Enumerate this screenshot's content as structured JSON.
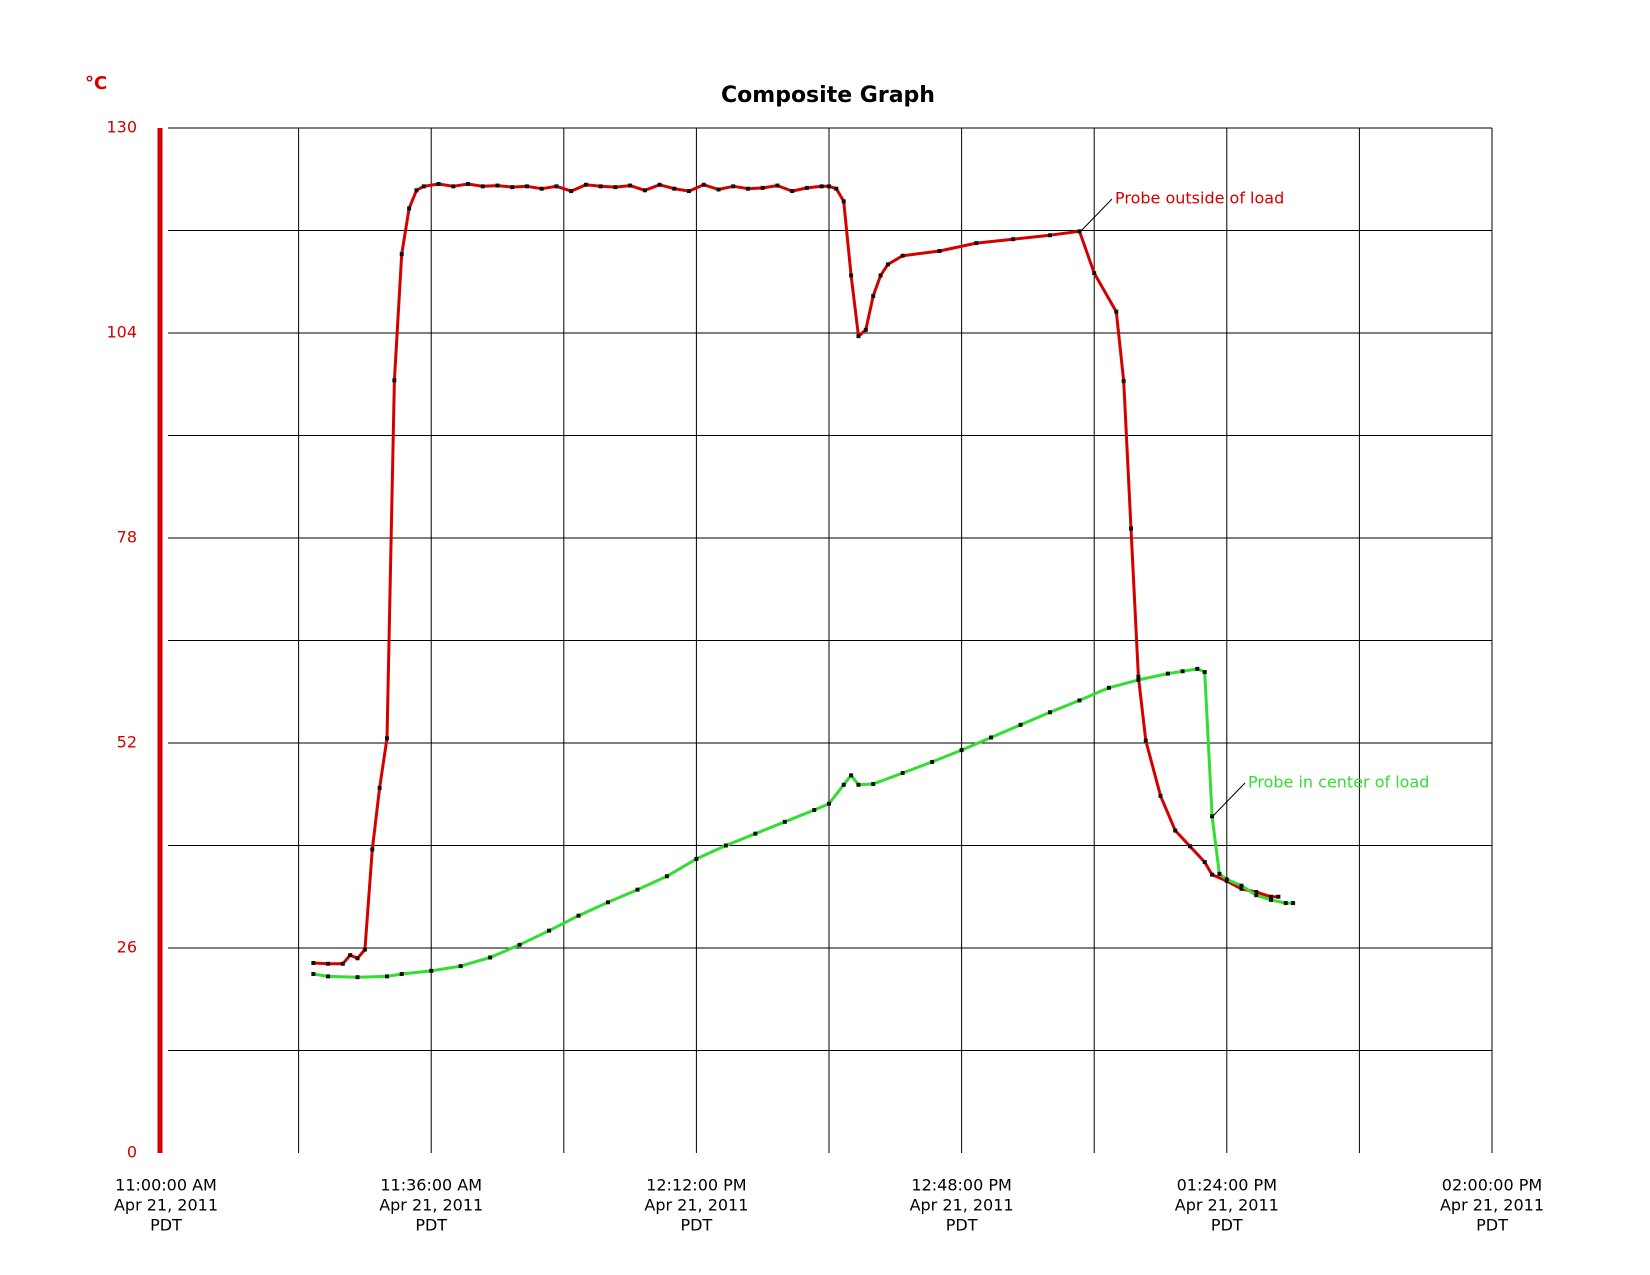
{
  "chart_data": {
    "type": "line",
    "title": "Composite Graph",
    "y_label": "°C",
    "xlim": [
      "2011-04-21T11:00:00",
      "2011-04-21T14:00:00"
    ],
    "xticks": [
      {
        "value": "2011-04-21T11:00:00",
        "label": [
          "11:00:00 AM",
          "Apr 21, 2011",
          "PDT"
        ]
      },
      {
        "value": "2011-04-21T11:18:00",
        "label": null
      },
      {
        "value": "2011-04-21T11:36:00",
        "label": [
          "11:36:00 AM",
          "Apr 21, 2011",
          "PDT"
        ]
      },
      {
        "value": "2011-04-21T11:54:00",
        "label": null
      },
      {
        "value": "2011-04-21T12:12:00",
        "label": [
          "12:12:00 PM",
          "Apr 21, 2011",
          "PDT"
        ]
      },
      {
        "value": "2011-04-21T12:30:00",
        "label": null
      },
      {
        "value": "2011-04-21T12:48:00",
        "label": [
          "12:48:00 PM",
          "Apr 21, 2011",
          "PDT"
        ]
      },
      {
        "value": "2011-04-21T13:06:00",
        "label": null
      },
      {
        "value": "2011-04-21T13:24:00",
        "label": [
          "01:24:00 PM",
          "Apr 21, 2011",
          "PDT"
        ]
      },
      {
        "value": "2011-04-21T13:42:00",
        "label": null
      },
      {
        "value": "2011-04-21T14:00:00",
        "label": [
          "02:00:00 PM",
          "Apr 21, 2011",
          "PDT"
        ]
      }
    ],
    "ylim": [
      0,
      130
    ],
    "yticks": [
      0,
      {
        "value": 13,
        "label": null
      },
      26,
      {
        "value": 39,
        "label": null
      },
      52,
      {
        "value": 65,
        "label": null
      },
      78,
      {
        "value": 91,
        "label": null
      },
      104,
      {
        "value": 117,
        "label": null
      },
      130
    ],
    "grid": true,
    "series": [
      {
        "name": "Probe outside of load",
        "color": "#d40000",
        "x": [
          "2011-04-21T11:20:00",
          "2011-04-21T11:22:00",
          "2011-04-21T11:24:00",
          "2011-04-21T11:25:00",
          "2011-04-21T11:26:00",
          "2011-04-21T11:27:00",
          "2011-04-21T11:28:00",
          "2011-04-21T11:29:00",
          "2011-04-21T11:30:00",
          "2011-04-21T11:31:00",
          "2011-04-21T11:32:00",
          "2011-04-21T11:33:00",
          "2011-04-21T11:34:00",
          "2011-04-21T11:35:00",
          "2011-04-21T11:37:00",
          "2011-04-21T11:39:00",
          "2011-04-21T11:41:00",
          "2011-04-21T11:43:00",
          "2011-04-21T11:45:00",
          "2011-04-21T11:47:00",
          "2011-04-21T11:49:00",
          "2011-04-21T11:51:00",
          "2011-04-21T11:53:00",
          "2011-04-21T11:55:00",
          "2011-04-21T11:57:00",
          "2011-04-21T11:59:00",
          "2011-04-21T12:01:00",
          "2011-04-21T12:03:00",
          "2011-04-21T12:05:00",
          "2011-04-21T12:07:00",
          "2011-04-21T12:09:00",
          "2011-04-21T12:11:00",
          "2011-04-21T12:13:00",
          "2011-04-21T12:15:00",
          "2011-04-21T12:17:00",
          "2011-04-21T12:19:00",
          "2011-04-21T12:21:00",
          "2011-04-21T12:23:00",
          "2011-04-21T12:25:00",
          "2011-04-21T12:27:00",
          "2011-04-21T12:29:00",
          "2011-04-21T12:30:00",
          "2011-04-21T12:31:00",
          "2011-04-21T12:32:00",
          "2011-04-21T12:33:00",
          "2011-04-21T12:34:00",
          "2011-04-21T12:35:00",
          "2011-04-21T12:36:00",
          "2011-04-21T12:37:00",
          "2011-04-21T12:38:00",
          "2011-04-21T12:40:00",
          "2011-04-21T12:45:00",
          "2011-04-21T12:50:00",
          "2011-04-21T12:55:00",
          "2011-04-21T13:00:00",
          "2011-04-21T13:04:00",
          "2011-04-21T13:06:00",
          "2011-04-21T13:09:00",
          "2011-04-21T13:10:00",
          "2011-04-21T13:11:00",
          "2011-04-21T13:12:00",
          "2011-04-21T13:13:00",
          "2011-04-21T13:15:00",
          "2011-04-21T13:17:00",
          "2011-04-21T13:19:00",
          "2011-04-21T13:21:00",
          "2011-04-21T13:22:00",
          "2011-04-21T13:24:00",
          "2011-04-21T13:26:00",
          "2011-04-21T13:28:00",
          "2011-04-21T13:30:00",
          "2011-04-21T13:31:00"
        ],
        "values": [
          24.1,
          24.0,
          24.0,
          25.1,
          24.7,
          25.8,
          38.5,
          46.3,
          52.6,
          98,
          114,
          119.8,
          122.1,
          122.6,
          122.9,
          122.6,
          122.9,
          122.6,
          122.7,
          122.5,
          122.6,
          122.3,
          122.6,
          122.0,
          122.8,
          122.6,
          122.5,
          122.7,
          122.1,
          122.8,
          122.3,
          122.0,
          122.8,
          122.2,
          122.6,
          122.3,
          122.4,
          122.7,
          122.0,
          122.4,
          122.6,
          122.6,
          122.3,
          120.7,
          111.3,
          103.6,
          104.4,
          108.7,
          111.3,
          112.7,
          113.8,
          114.4,
          115.4,
          115.9,
          116.4,
          116.9,
          111.6,
          106.7,
          97.9,
          79.2,
          60.4,
          52.3,
          45.3,
          40.9,
          38.9,
          36.9,
          35.3,
          34.5,
          33.5,
          33.1,
          32.5,
          32.5
        ]
      },
      {
        "name": "Probe in center of load",
        "color": "#33dd33",
        "x": [
          "2011-04-21T11:20:00",
          "2011-04-21T11:22:00",
          "2011-04-21T11:26:00",
          "2011-04-21T11:30:00",
          "2011-04-21T11:32:00",
          "2011-04-21T11:36:00",
          "2011-04-21T11:40:00",
          "2011-04-21T11:44:00",
          "2011-04-21T11:48:00",
          "2011-04-21T11:52:00",
          "2011-04-21T11:56:00",
          "2011-04-21T12:00:00",
          "2011-04-21T12:04:00",
          "2011-04-21T12:08:00",
          "2011-04-21T12:12:00",
          "2011-04-21T12:16:00",
          "2011-04-21T12:20:00",
          "2011-04-21T12:24:00",
          "2011-04-21T12:28:00",
          "2011-04-21T12:30:00",
          "2011-04-21T12:32:00",
          "2011-04-21T12:33:00",
          "2011-04-21T12:34:00",
          "2011-04-21T12:36:00",
          "2011-04-21T12:40:00",
          "2011-04-21T12:44:00",
          "2011-04-21T12:48:00",
          "2011-04-21T12:52:00",
          "2011-04-21T12:56:00",
          "2011-04-21T13:00:00",
          "2011-04-21T13:04:00",
          "2011-04-21T13:08:00",
          "2011-04-21T13:12:00",
          "2011-04-21T13:16:00",
          "2011-04-21T13:18:00",
          "2011-04-21T13:20:00",
          "2011-04-21T13:21:00",
          "2011-04-21T13:22:00",
          "2011-04-21T13:23:00",
          "2011-04-21T13:24:00",
          "2011-04-21T13:26:00",
          "2011-04-21T13:28:00",
          "2011-04-21T13:30:00",
          "2011-04-21T13:32:00",
          "2011-04-21T13:33:00"
        ],
        "values": [
          22.7,
          22.4,
          22.3,
          22.4,
          22.7,
          23.1,
          23.7,
          24.8,
          26.4,
          28.2,
          30.1,
          31.8,
          33.4,
          35.1,
          37.3,
          39.0,
          40.5,
          42.0,
          43.5,
          44.3,
          46.7,
          47.9,
          46.7,
          46.8,
          48.2,
          49.6,
          51.1,
          52.7,
          54.3,
          55.9,
          57.4,
          59.0,
          60.0,
          60.8,
          61.1,
          61.4,
          61.0,
          42.7,
          35.4,
          34.7,
          33.9,
          32.7,
          32.1,
          31.7,
          31.7
        ]
      }
    ]
  }
}
